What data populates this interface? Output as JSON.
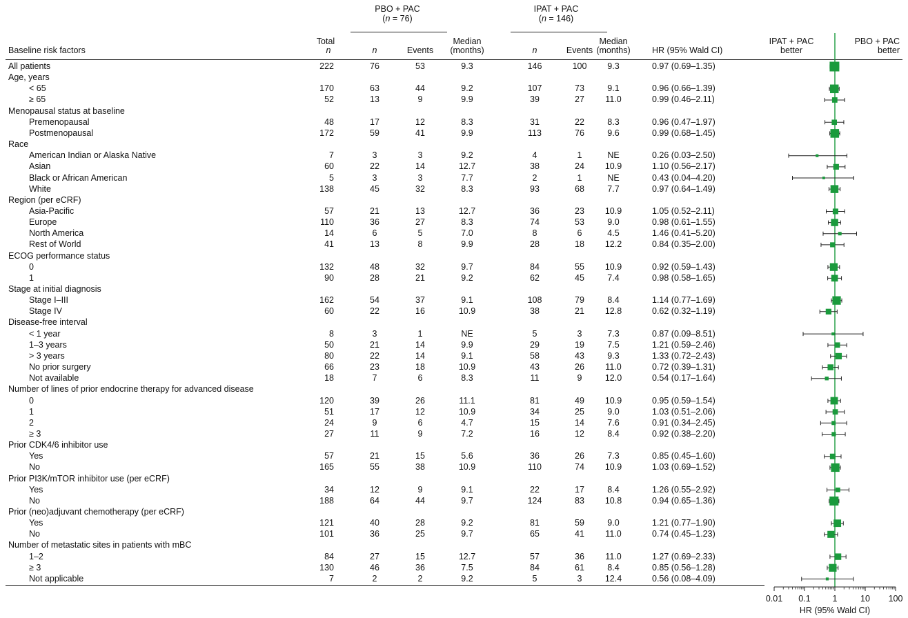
{
  "header": {
    "group_pbo": "PBO + PAC",
    "group_pbo_n": "(n = 76)",
    "group_ipat": "IPAT + PAC",
    "group_ipat_n": "(n = 146)",
    "col_factor": "Baseline risk factors",
    "col_total_1": "Total",
    "col_total_2": "n",
    "col_n": "n",
    "col_events": "Events",
    "col_median_1": "Median",
    "col_median_2": "(months)",
    "col_hr": "HR (95% Wald CI)",
    "favor_left_1": "IPAT + PAC",
    "favor_left_2": "better",
    "favor_right_1": "PBO + PAC",
    "favor_right_2": "better"
  },
  "chart_data": {
    "type": "forest",
    "x_scale": "log",
    "xlabel": "HR (95% Wald CI)",
    "xlim": [
      0.01,
      100
    ],
    "x_tick_labels": [
      "0.01",
      "0.1",
      "1",
      "10",
      "100"
    ],
    "reference_line": 1,
    "rows": [
      {
        "label": "All patients",
        "indent": 0,
        "total": "222",
        "pbo_n": "76",
        "pbo_events": "53",
        "pbo_median": "9.3",
        "ipat_n": "146",
        "ipat_events": "100",
        "ipat_median": "9.3",
        "hr_text": "0.97 (0.69–1.35)",
        "hr": 0.97,
        "lo": 0.69,
        "hi": 1.35
      },
      {
        "label": "Age, years",
        "indent": 0
      },
      {
        "label": "< 65",
        "indent": 1,
        "total": "170",
        "pbo_n": "63",
        "pbo_events": "44",
        "pbo_median": "9.2",
        "ipat_n": "107",
        "ipat_events": "73",
        "ipat_median": "9.1",
        "hr_text": "0.96 (0.66–1.39)",
        "hr": 0.96,
        "lo": 0.66,
        "hi": 1.39
      },
      {
        "label": "≥ 65",
        "indent": 1,
        "total": "52",
        "pbo_n": "13",
        "pbo_events": "9",
        "pbo_median": "9.9",
        "ipat_n": "39",
        "ipat_events": "27",
        "ipat_median": "11.0",
        "hr_text": "0.99 (0.46–2.11)",
        "hr": 0.99,
        "lo": 0.46,
        "hi": 2.11
      },
      {
        "label": "Menopausal status at baseline",
        "indent": 0
      },
      {
        "label": "Premenopausal",
        "indent": 1,
        "total": "48",
        "pbo_n": "17",
        "pbo_events": "12",
        "pbo_median": "8.3",
        "ipat_n": "31",
        "ipat_events": "22",
        "ipat_median": "8.3",
        "hr_text": "0.96 (0.47–1.97)",
        "hr": 0.96,
        "lo": 0.47,
        "hi": 1.97
      },
      {
        "label": "Postmenopausal",
        "indent": 1,
        "total": "172",
        "pbo_n": "59",
        "pbo_events": "41",
        "pbo_median": "9.9",
        "ipat_n": "113",
        "ipat_events": "76",
        "ipat_median": "9.6",
        "hr_text": "0.99 (0.68–1.45)",
        "hr": 0.99,
        "lo": 0.68,
        "hi": 1.45
      },
      {
        "label": "Race",
        "indent": 0
      },
      {
        "label": "American Indian or Alaska Native",
        "indent": 1,
        "total": "7",
        "pbo_n": "3",
        "pbo_events": "3",
        "pbo_median": "9.2",
        "ipat_n": "4",
        "ipat_events": "1",
        "ipat_median": "NE",
        "hr_text": "0.26 (0.03–2.50)",
        "hr": 0.26,
        "lo": 0.03,
        "hi": 2.5
      },
      {
        "label": "Asian",
        "indent": 1,
        "total": "60",
        "pbo_n": "22",
        "pbo_events": "14",
        "pbo_median": "12.7",
        "ipat_n": "38",
        "ipat_events": "24",
        "ipat_median": "10.9",
        "hr_text": "1.10 (0.56–2.17)",
        "hr": 1.1,
        "lo": 0.56,
        "hi": 2.17
      },
      {
        "label": "Black or African American",
        "indent": 1,
        "total": "5",
        "pbo_n": "3",
        "pbo_events": "3",
        "pbo_median": "7.7",
        "ipat_n": "2",
        "ipat_events": "1",
        "ipat_median": "NE",
        "hr_text": "0.43 (0.04–4.20)",
        "hr": 0.43,
        "lo": 0.04,
        "hi": 4.2
      },
      {
        "label": "White",
        "indent": 1,
        "total": "138",
        "pbo_n": "45",
        "pbo_events": "32",
        "pbo_median": "8.3",
        "ipat_n": "93",
        "ipat_events": "68",
        "ipat_median": "7.7",
        "hr_text": "0.97 (0.64–1.49)",
        "hr": 0.97,
        "lo": 0.64,
        "hi": 1.49
      },
      {
        "label": "Region (per eCRF)",
        "indent": 0
      },
      {
        "label": "Asia-Pacific",
        "indent": 1,
        "total": "57",
        "pbo_n": "21",
        "pbo_events": "13",
        "pbo_median": "12.7",
        "ipat_n": "36",
        "ipat_events": "23",
        "ipat_median": "10.9",
        "hr_text": "1.05 (0.52–2.11)",
        "hr": 1.05,
        "lo": 0.52,
        "hi": 2.11
      },
      {
        "label": "Europe",
        "indent": 1,
        "total": "110",
        "pbo_n": "36",
        "pbo_events": "27",
        "pbo_median": "8.3",
        "ipat_n": "74",
        "ipat_events": "53",
        "ipat_median": "9.0",
        "hr_text": "0.98 (0.61–1.55)",
        "hr": 0.98,
        "lo": 0.61,
        "hi": 1.55
      },
      {
        "label": "North America",
        "indent": 1,
        "total": "14",
        "pbo_n": "6",
        "pbo_events": "5",
        "pbo_median": "7.0",
        "ipat_n": "8",
        "ipat_events": "6",
        "ipat_median": "4.5",
        "hr_text": "1.46 (0.41–5.20)",
        "hr": 1.46,
        "lo": 0.41,
        "hi": 5.2
      },
      {
        "label": "Rest of World",
        "indent": 1,
        "total": "41",
        "pbo_n": "13",
        "pbo_events": "8",
        "pbo_median": "9.9",
        "ipat_n": "28",
        "ipat_events": "18",
        "ipat_median": "12.2",
        "hr_text": "0.84 (0.35–2.00)",
        "hr": 0.84,
        "lo": 0.35,
        "hi": 2.0
      },
      {
        "label": "ECOG performance status",
        "indent": 0
      },
      {
        "label": "0",
        "indent": 1,
        "total": "132",
        "pbo_n": "48",
        "pbo_events": "32",
        "pbo_median": "9.7",
        "ipat_n": "84",
        "ipat_events": "55",
        "ipat_median": "10.9",
        "hr_text": "0.92 (0.59–1.43)",
        "hr": 0.92,
        "lo": 0.59,
        "hi": 1.43
      },
      {
        "label": "1",
        "indent": 1,
        "total": "90",
        "pbo_n": "28",
        "pbo_events": "21",
        "pbo_median": "9.2",
        "ipat_n": "62",
        "ipat_events": "45",
        "ipat_median": "7.4",
        "hr_text": "0.98 (0.58–1.65)",
        "hr": 0.98,
        "lo": 0.58,
        "hi": 1.65
      },
      {
        "label": "Stage at initial diagnosis",
        "indent": 0
      },
      {
        "label": "Stage I–III",
        "indent": 1,
        "total": "162",
        "pbo_n": "54",
        "pbo_events": "37",
        "pbo_median": "9.1",
        "ipat_n": "108",
        "ipat_events": "79",
        "ipat_median": "8.4",
        "hr_text": "1.14 (0.77–1.69)",
        "hr": 1.14,
        "lo": 0.77,
        "hi": 1.69
      },
      {
        "label": "Stage IV",
        "indent": 1,
        "total": "60",
        "pbo_n": "22",
        "pbo_events": "16",
        "pbo_median": "10.9",
        "ipat_n": "38",
        "ipat_events": "21",
        "ipat_median": "12.8",
        "hr_text": "0.62 (0.32–1.19)",
        "hr": 0.62,
        "lo": 0.32,
        "hi": 1.19
      },
      {
        "label": "Disease-free interval",
        "indent": 0
      },
      {
        "label": "< 1 year",
        "indent": 1,
        "total": "8",
        "pbo_n": "3",
        "pbo_events": "1",
        "pbo_median": "NE",
        "ipat_n": "5",
        "ipat_events": "3",
        "ipat_median": "7.3",
        "hr_text": "0.87 (0.09–8.51)",
        "hr": 0.87,
        "lo": 0.09,
        "hi": 8.51
      },
      {
        "label": "1–3 years",
        "indent": 1,
        "total": "50",
        "pbo_n": "21",
        "pbo_events": "14",
        "pbo_median": "9.9",
        "ipat_n": "29",
        "ipat_events": "19",
        "ipat_median": "7.5",
        "hr_text": "1.21 (0.59–2.46)",
        "hr": 1.21,
        "lo": 0.59,
        "hi": 2.46
      },
      {
        "label": "> 3 years",
        "indent": 1,
        "total": "80",
        "pbo_n": "22",
        "pbo_events": "14",
        "pbo_median": "9.1",
        "ipat_n": "58",
        "ipat_events": "43",
        "ipat_median": "9.3",
        "hr_text": "1.33 (0.72–2.43)",
        "hr": 1.33,
        "lo": 0.72,
        "hi": 2.43
      },
      {
        "label": "No prior surgery",
        "indent": 1,
        "total": "66",
        "pbo_n": "23",
        "pbo_events": "18",
        "pbo_median": "10.9",
        "ipat_n": "43",
        "ipat_events": "26",
        "ipat_median": "11.0",
        "hr_text": "0.72 (0.39–1.31)",
        "hr": 0.72,
        "lo": 0.39,
        "hi": 1.31
      },
      {
        "label": "Not available",
        "indent": 1,
        "total": "18",
        "pbo_n": "7",
        "pbo_events": "6",
        "pbo_median": "8.3",
        "ipat_n": "11",
        "ipat_events": "9",
        "ipat_median": "12.0",
        "hr_text": "0.54 (0.17–1.64)",
        "hr": 0.54,
        "lo": 0.17,
        "hi": 1.64
      },
      {
        "label": "Number of lines of prior endocrine therapy for advanced disease",
        "indent": 0
      },
      {
        "label": "0",
        "indent": 1,
        "total": "120",
        "pbo_n": "39",
        "pbo_events": "26",
        "pbo_median": "11.1",
        "ipat_n": "81",
        "ipat_events": "49",
        "ipat_median": "10.9",
        "hr_text": "0.95 (0.59–1.54)",
        "hr": 0.95,
        "lo": 0.59,
        "hi": 1.54
      },
      {
        "label": "1",
        "indent": 1,
        "total": "51",
        "pbo_n": "17",
        "pbo_events": "12",
        "pbo_median": "10.9",
        "ipat_n": "34",
        "ipat_events": "25",
        "ipat_median": "9.0",
        "hr_text": "1.03 (0.51–2.06)",
        "hr": 1.03,
        "lo": 0.51,
        "hi": 2.06
      },
      {
        "label": "2",
        "indent": 1,
        "total": "24",
        "pbo_n": "9",
        "pbo_events": "6",
        "pbo_median": "4.7",
        "ipat_n": "15",
        "ipat_events": "14",
        "ipat_median": "7.6",
        "hr_text": "0.91 (0.34–2.45)",
        "hr": 0.91,
        "lo": 0.34,
        "hi": 2.45
      },
      {
        "label": "≥ 3",
        "indent": 1,
        "total": "27",
        "pbo_n": "11",
        "pbo_events": "9",
        "pbo_median": "7.2",
        "ipat_n": "16",
        "ipat_events": "12",
        "ipat_median": "8.4",
        "hr_text": "0.92 (0.38–2.20)",
        "hr": 0.92,
        "lo": 0.38,
        "hi": 2.2
      },
      {
        "label": "Prior CDK4/6 inhibitor use",
        "indent": 0
      },
      {
        "label": "Yes",
        "indent": 1,
        "total": "57",
        "pbo_n": "21",
        "pbo_events": "15",
        "pbo_median": "5.6",
        "ipat_n": "36",
        "ipat_events": "26",
        "ipat_median": "7.3",
        "hr_text": "0.85 (0.45–1.60)",
        "hr": 0.85,
        "lo": 0.45,
        "hi": 1.6
      },
      {
        "label": "No",
        "indent": 1,
        "total": "165",
        "pbo_n": "55",
        "pbo_events": "38",
        "pbo_median": "10.9",
        "ipat_n": "110",
        "ipat_events": "74",
        "ipat_median": "10.9",
        "hr_text": "1.03 (0.69–1.52)",
        "hr": 1.03,
        "lo": 0.69,
        "hi": 1.52
      },
      {
        "label": "Prior PI3K/mTOR inhibitor use (per eCRF)",
        "indent": 0
      },
      {
        "label": "Yes",
        "indent": 1,
        "total": "34",
        "pbo_n": "12",
        "pbo_events": "9",
        "pbo_median": "9.1",
        "ipat_n": "22",
        "ipat_events": "17",
        "ipat_median": "8.4",
        "hr_text": "1.26 (0.55–2.92)",
        "hr": 1.26,
        "lo": 0.55,
        "hi": 2.92
      },
      {
        "label": "No",
        "indent": 1,
        "total": "188",
        "pbo_n": "64",
        "pbo_events": "44",
        "pbo_median": "9.7",
        "ipat_n": "124",
        "ipat_events": "83",
        "ipat_median": "10.8",
        "hr_text": "0.94 (0.65–1.36)",
        "hr": 0.94,
        "lo": 0.65,
        "hi": 1.36
      },
      {
        "label": "Prior (neo)adjuvant chemotherapy (per eCRF)",
        "indent": 0
      },
      {
        "label": "Yes",
        "indent": 1,
        "total": "121",
        "pbo_n": "40",
        "pbo_events": "28",
        "pbo_median": "9.2",
        "ipat_n": "81",
        "ipat_events": "59",
        "ipat_median": "9.0",
        "hr_text": "1.21 (0.77–1.90)",
        "hr": 1.21,
        "lo": 0.77,
        "hi": 1.9
      },
      {
        "label": "No",
        "indent": 1,
        "total": "101",
        "pbo_n": "36",
        "pbo_events": "25",
        "pbo_median": "9.7",
        "ipat_n": "65",
        "ipat_events": "41",
        "ipat_median": "11.0",
        "hr_text": "0.74 (0.45–1.23)",
        "hr": 0.74,
        "lo": 0.45,
        "hi": 1.23
      },
      {
        "label": "Number of metastatic sites in patients with mBC",
        "indent": 0
      },
      {
        "label": "1–2",
        "indent": 1,
        "total": "84",
        "pbo_n": "27",
        "pbo_events": "15",
        "pbo_median": "12.7",
        "ipat_n": "57",
        "ipat_events": "36",
        "ipat_median": "11.0",
        "hr_text": "1.27 (0.69–2.33)",
        "hr": 1.27,
        "lo": 0.69,
        "hi": 2.33
      },
      {
        "label": "≥ 3",
        "indent": 1,
        "total": "130",
        "pbo_n": "46",
        "pbo_events": "36",
        "pbo_median": "7.5",
        "ipat_n": "84",
        "ipat_events": "61",
        "ipat_median": "8.4",
        "hr_text": "0.85 (0.56–1.28)",
        "hr": 0.85,
        "lo": 0.56,
        "hi": 1.28
      },
      {
        "label": "Not applicable",
        "indent": 1,
        "total": "7",
        "pbo_n": "2",
        "pbo_events": "2",
        "pbo_median": "9.2",
        "ipat_n": "5",
        "ipat_events": "3",
        "ipat_median": "12.4",
        "hr_text": "0.56 (0.08–4.09)",
        "hr": 0.56,
        "lo": 0.08,
        "hi": 4.09
      }
    ]
  },
  "colors": {
    "marker": "#1a9a3c",
    "reference_line": "#1a9a3c",
    "text": "#111111"
  }
}
